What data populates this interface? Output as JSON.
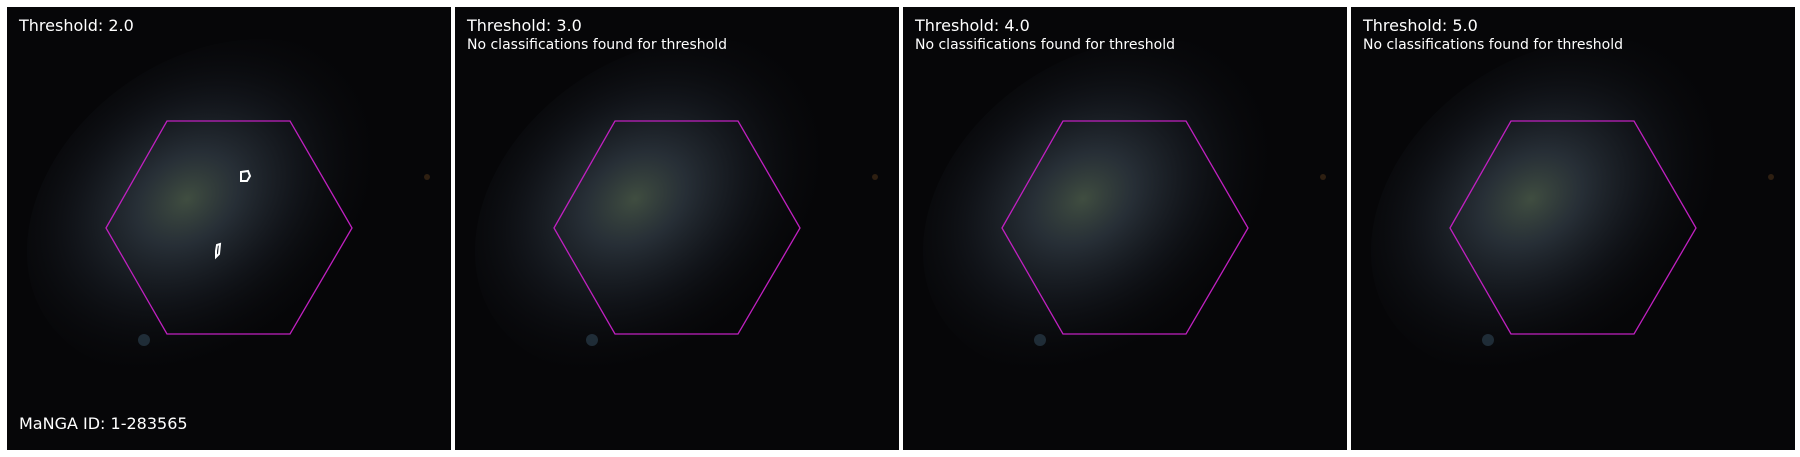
{
  "manga_id_label": "MaNGA ID: 1-283565",
  "no_class_message": "No classifications found for threshold",
  "hexagon_color": "#c020c0",
  "contour_color": "#ffffff",
  "panels": [
    {
      "threshold_label": "Threshold: 2.0",
      "has_contours": true
    },
    {
      "threshold_label": "Threshold: 3.0",
      "has_contours": false
    },
    {
      "threshold_label": "Threshold: 4.0",
      "has_contours": false
    },
    {
      "threshold_label": "Threshold: 5.0",
      "has_contours": false
    }
  ]
}
